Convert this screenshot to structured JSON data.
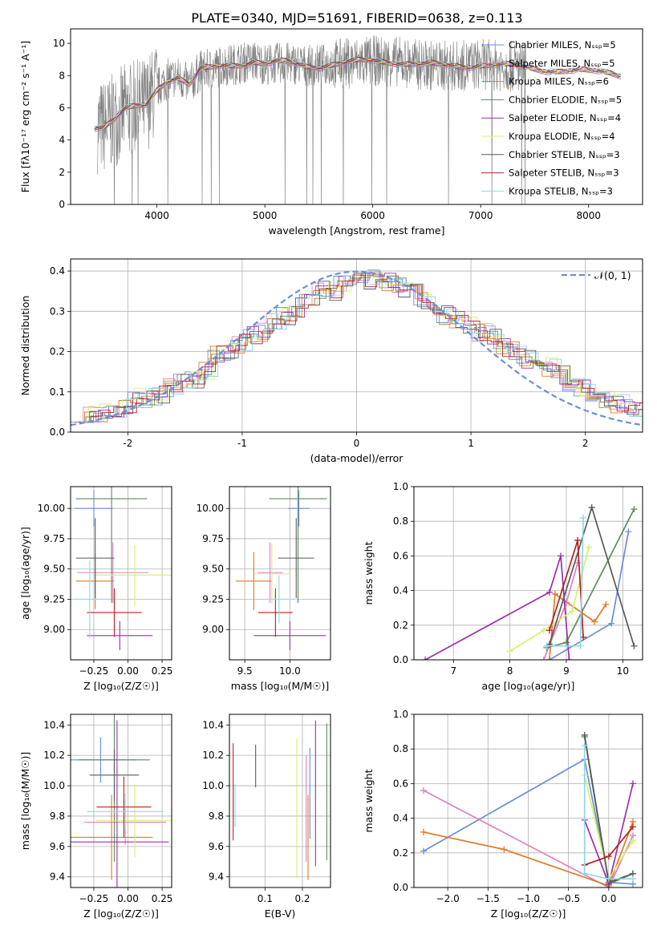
{
  "figure": {
    "title": "PLATE=0340, MJD=51691, FIBERID=0638, z=0.113"
  },
  "colors": [
    "#6a8fd8",
    "#e27fbf",
    "#e07b24",
    "#5e8a5e",
    "#9c2fae",
    "#d4f06a",
    "#5a5a5a",
    "#b82020",
    "#8fd6e8"
  ],
  "chart_data": [
    {
      "id": "spectrum",
      "type": "line",
      "title": "PLATE=0340, MJD=51691, FIBERID=0638, z=0.113",
      "xlabel": "wavelength [Angstrom, rest frame]",
      "ylabel": "Flux [fλ10⁻¹⁷ erg cm⁻² s⁻¹ A⁻¹]",
      "xlim": [
        3200,
        8500
      ],
      "ylim": [
        0,
        10.9
      ],
      "xticks": [
        4000,
        5000,
        6000,
        7000,
        8000
      ],
      "yticks": [
        0,
        2,
        4,
        6,
        8,
        10
      ],
      "grid": false,
      "legend_position": "top-right",
      "series": [
        {
          "name": "Chabrier MILES, N_SSP=5"
        },
        {
          "name": "Salpeter MILES, N_SSP=5"
        },
        {
          "name": "Kroupa MILES, N_SSP=6"
        },
        {
          "name": "Chabrier ELODIE, N_SSP=5"
        },
        {
          "name": "Salpeter ELODIE, N_SSP=4"
        },
        {
          "name": "Kroupa ELODIE, N_SSP=4"
        },
        {
          "name": "Chabrier STELIB, N_SSP=3"
        },
        {
          "name": "Salpeter STELIB, N_SSP=3"
        },
        {
          "name": "Kroupa STELIB, N_SSP=3"
        }
      ],
      "continuum_model": {
        "x": [
          3400,
          3500,
          3600,
          3700,
          3800,
          3900,
          4000,
          4100,
          4200,
          4300,
          4400,
          4500,
          4600,
          4700,
          4800,
          4900,
          5000,
          5200,
          5400,
          5600,
          5800,
          6000,
          6200,
          6400,
          6600,
          6800,
          7000,
          7200,
          7400,
          7600,
          7800,
          8000,
          8200,
          8300
        ],
        "y": [
          4.9,
          4.8,
          5.2,
          5.8,
          6.0,
          6.2,
          7.2,
          7.8,
          7.9,
          7.4,
          8.3,
          8.4,
          8.6,
          8.7,
          8.8,
          8.9,
          8.7,
          8.8,
          8.6,
          8.7,
          8.8,
          8.9,
          8.9,
          8.7,
          8.6,
          8.6,
          8.7,
          8.6,
          8.5,
          8.4,
          8.3,
          8.2,
          8.2,
          8.1
        ]
      }
    },
    {
      "id": "residual-histogram",
      "type": "step",
      "xlabel": "(data-model)/error",
      "ylabel": "Normed distribution",
      "xlim": [
        -2.5,
        2.5
      ],
      "ylim": [
        0,
        0.43
      ],
      "xticks": [
        -2,
        -1,
        0,
        1,
        2
      ],
      "yticks": [
        0.0,
        0.1,
        0.2,
        0.3,
        0.4
      ],
      "grid": true,
      "legend_position": "top-right",
      "reference": {
        "name": "𝒩(0, 1)",
        "mean": 0,
        "sigma": 1
      },
      "bins": [
        -2.5,
        -2.4,
        -2.3,
        -2.2,
        -2.1,
        -2.0,
        -1.9,
        -1.8,
        -1.7,
        -1.6,
        -1.5,
        -1.4,
        -1.3,
        -1.2,
        -1.1,
        -1.0,
        -0.9,
        -0.8,
        -0.7,
        -0.6,
        -0.5,
        -0.4,
        -0.3,
        -0.2,
        -0.1,
        0.0,
        0.1,
        0.2,
        0.3,
        0.4,
        0.5,
        0.6,
        0.7,
        0.8,
        0.9,
        1.0,
        1.1,
        1.2,
        1.3,
        1.4,
        1.5,
        1.6,
        1.7,
        1.8,
        1.9,
        2.0,
        2.1,
        2.2,
        2.3,
        2.4,
        2.5
      ],
      "density_approx": [
        0.05,
        0.045,
        0.05,
        0.055,
        0.06,
        0.085,
        0.085,
        0.09,
        0.11,
        0.12,
        0.13,
        0.155,
        0.19,
        0.2,
        0.22,
        0.24,
        0.25,
        0.27,
        0.29,
        0.31,
        0.32,
        0.35,
        0.35,
        0.37,
        0.38,
        0.38,
        0.385,
        0.37,
        0.36,
        0.35,
        0.33,
        0.31,
        0.29,
        0.28,
        0.27,
        0.25,
        0.24,
        0.21,
        0.2,
        0.18,
        0.17,
        0.16,
        0.14,
        0.11,
        0.105,
        0.09,
        0.08,
        0.07,
        0.06,
        0.055
      ]
    },
    {
      "id": "age-vs-Z",
      "type": "errorbar",
      "xlabel": "Z [log₁₀(Z/Z☉)]",
      "ylabel": "age  [log₁₀(age/yr)]",
      "xlim": [
        -0.42,
        0.32
      ],
      "ylim": [
        8.75,
        10.18
      ],
      "xticks": [
        -0.25,
        0.0,
        0.25
      ],
      "xticklabels": [
        "−0.25",
        "0.00",
        "0.25"
      ],
      "yticks": [
        9.0,
        9.25,
        9.5,
        9.75,
        10.0
      ],
      "yticklabels": [
        "9.00",
        "9.25",
        "9.50",
        "9.75",
        "10.00"
      ],
      "grid": true,
      "points": [
        {
          "c": 0,
          "x": -0.25,
          "xerr": 0.14,
          "y": 10.0,
          "yerr": 0.15
        },
        {
          "c": 1,
          "x": -0.11,
          "xerr": 0.26,
          "y": 9.47,
          "yerr": 0.25
        },
        {
          "c": 2,
          "x": -0.24,
          "xerr": 0.14,
          "y": 9.4,
          "yerr": 0.23
        },
        {
          "c": 3,
          "x": -0.12,
          "xerr": 0.26,
          "y": 10.08,
          "yerr": 0.86
        },
        {
          "c": 4,
          "x": -0.06,
          "xerr": 0.24,
          "y": 8.95,
          "yerr": 0.12
        },
        {
          "c": 5,
          "x": 0.05,
          "xerr": 0.3,
          "y": 9.45,
          "yerr": 0.25
        },
        {
          "c": 6,
          "x": -0.24,
          "xerr": 0.14,
          "y": 9.59,
          "yerr": 0.33
        },
        {
          "c": 7,
          "x": -0.1,
          "xerr": 0.2,
          "y": 9.14,
          "yerr": 0.2
        },
        {
          "c": 8,
          "x": -0.28,
          "xerr": 0.12,
          "y": 9.25,
          "yerr": 0.32
        }
      ]
    },
    {
      "id": "age-vs-mass",
      "type": "errorbar",
      "xlabel": "mass [log₁₀(M/M☉)]",
      "ylabel": "",
      "xlim": [
        9.33,
        10.45
      ],
      "ylim": [
        8.75,
        10.18
      ],
      "xticks": [
        9.5,
        10.0
      ],
      "xticklabels": [
        "9.5",
        "10.0"
      ],
      "yticks": [
        9.0,
        9.25,
        9.5,
        9.75,
        10.0
      ],
      "yticklabels": [
        "9.00",
        "9.25",
        "9.50",
        "9.75",
        "10.00"
      ],
      "grid": true,
      "points": [
        {
          "c": 0,
          "x": 10.1,
          "xerr": 0.12,
          "y": 10.0,
          "yerr": 0.15
        },
        {
          "c": 1,
          "x": 9.78,
          "xerr": 0.14,
          "y": 9.47,
          "yerr": 0.25
        },
        {
          "c": 2,
          "x": 9.6,
          "xerr": 0.2,
          "y": 9.4,
          "yerr": 0.24
        },
        {
          "c": 3,
          "x": 10.09,
          "xerr": 0.32,
          "y": 10.08,
          "yerr": 0.86
        },
        {
          "c": 4,
          "x": 10.0,
          "xerr": 0.4,
          "y": 8.95,
          "yerr": 0.12
        },
        {
          "c": 5,
          "x": 9.8,
          "xerr": 0.2,
          "y": 9.46,
          "yerr": 0.25
        },
        {
          "c": 6,
          "x": 10.07,
          "xerr": 0.2,
          "y": 9.59,
          "yerr": 0.33
        },
        {
          "c": 7,
          "x": 9.84,
          "xerr": 0.19,
          "y": 9.14,
          "yerr": 0.2
        },
        {
          "c": 8,
          "x": 9.88,
          "xerr": 0.18,
          "y": 9.25,
          "yerr": 0.2
        }
      ]
    },
    {
      "id": "mass-weight-vs-age",
      "type": "line",
      "xlabel": "age  [log₁₀(age/yr)]",
      "ylabel": "mass weight",
      "xlim": [
        6.3,
        10.35
      ],
      "ylim": [
        0,
        1.0
      ],
      "xticks": [
        7,
        8,
        9,
        10
      ],
      "yticks": [
        0.0,
        0.2,
        0.4,
        0.6,
        0.8,
        1.0
      ],
      "grid": true,
      "series": [
        {
          "c": 0,
          "x": [
            8.7,
            9.8,
            10.1
          ],
          "y": [
            0.0,
            0.21,
            0.74
          ]
        },
        {
          "c": 1,
          "x": [
            8.6,
            9.0,
            9.2
          ],
          "y": [
            0.0,
            0.33,
            0.56
          ]
        },
        {
          "c": 2,
          "x": [
            8.7,
            8.8,
            9.5,
            9.7
          ],
          "y": [
            0.0,
            0.38,
            0.22,
            0.32
          ]
        },
        {
          "c": 3,
          "x": [
            8.65,
            9.0,
            10.2
          ],
          "y": [
            0.07,
            0.1,
            0.87
          ]
        },
        {
          "c": 4,
          "x": [
            6.5,
            8.7,
            8.9,
            9.05
          ],
          "y": [
            0.0,
            0.39,
            0.6,
            0.0
          ]
        },
        {
          "c": 5,
          "x": [
            8.0,
            8.6,
            9.1,
            9.4
          ],
          "y": [
            0.05,
            0.17,
            0.28,
            0.65
          ]
        },
        {
          "c": 6,
          "x": [
            8.7,
            9.45,
            10.2
          ],
          "y": [
            0.09,
            0.88,
            0.08
          ]
        },
        {
          "c": 7,
          "x": [
            8.7,
            9.2,
            9.3
          ],
          "y": [
            0.17,
            0.69,
            0.13
          ]
        },
        {
          "c": 8,
          "x": [
            8.65,
            9.25,
            9.3
          ],
          "y": [
            0.08,
            0.08,
            0.82
          ]
        }
      ]
    },
    {
      "id": "mass-vs-Z",
      "type": "errorbar",
      "xlabel": "Z [log₁₀(Z/Z☉)]",
      "ylabel": "mass [log₁₀(M/M☉)]",
      "xlim": [
        -0.42,
        0.32
      ],
      "ylim": [
        9.33,
        10.47
      ],
      "xticks": [
        -0.25,
        0.0,
        0.25
      ],
      "xticklabels": [
        "−0.25",
        "0.00",
        "0.25"
      ],
      "yticks": [
        9.4,
        9.6,
        9.8,
        10.0,
        10.2,
        10.4
      ],
      "yticklabels": [
        "9.4",
        "9.6",
        "9.8",
        "10.0",
        "10.2",
        "10.4"
      ],
      "grid": true,
      "points": [
        {
          "c": 0,
          "x": -0.2,
          "xerr": 0.26,
          "y": 10.17,
          "yerr": 0.15
        },
        {
          "c": 1,
          "x": -0.02,
          "xerr": 0.3,
          "y": 9.76,
          "yerr": 0.15
        },
        {
          "c": 2,
          "x": -0.12,
          "xerr": 0.3,
          "y": 9.66,
          "yerr": 0.28
        },
        {
          "c": 3,
          "x": -0.1,
          "xerr": 0.26,
          "y": 10.17,
          "yerr": 0.67
        },
        {
          "c": 4,
          "x": -0.08,
          "xerr": 0.38,
          "y": 9.63,
          "yerr": 0.8
        },
        {
          "c": 5,
          "x": 0.05,
          "xerr": 0.28,
          "y": 9.77,
          "yerr": 0.24
        },
        {
          "c": 6,
          "x": -0.1,
          "xerr": 0.18,
          "y": 10.07,
          "yerr": 0.17
        },
        {
          "c": 7,
          "x": -0.03,
          "xerr": 0.2,
          "y": 9.86,
          "yerr": 0.2
        },
        {
          "c": 8,
          "x": -0.02,
          "xerr": 0.28,
          "y": 9.83,
          "yerr": 0.12
        }
      ]
    },
    {
      "id": "mass-vs-EBV",
      "type": "errorbar",
      "xlabel": "E(B-V)",
      "ylabel": "",
      "xlim": [
        0.005,
        0.275
      ],
      "ylim": [
        9.33,
        10.47
      ],
      "xticks": [
        0.1,
        0.2
      ],
      "xticklabels": [
        "0.1",
        "0.2"
      ],
      "yticks": [
        9.4,
        9.6,
        9.8,
        10.0,
        10.2,
        10.4
      ],
      "yticklabels": [
        "9.4",
        "9.6",
        "9.8",
        "10.0",
        "10.2",
        "10.4"
      ],
      "grid": true,
      "points": [
        {
          "c": 0,
          "x": 0.22,
          "xerr": 0,
          "y": 9.95,
          "yerr": 0.3
        },
        {
          "c": 1,
          "x": 0.21,
          "xerr": 0,
          "y": 9.85,
          "yerr": 0.35
        },
        {
          "c": 2,
          "x": 0.215,
          "xerr": 0,
          "y": 9.66,
          "yerr": 0.28
        },
        {
          "c": 3,
          "x": 0.265,
          "xerr": 0,
          "y": 9.96,
          "yerr": 0.45
        },
        {
          "c": 4,
          "x": 0.235,
          "xerr": 0,
          "y": 9.95,
          "yerr": 0.48
        },
        {
          "c": 5,
          "x": 0.185,
          "xerr": 0,
          "y": 9.85,
          "yerr": 0.46
        },
        {
          "c": 6,
          "x": 0.075,
          "xerr": 0,
          "y": 10.13,
          "yerr": 0.14
        },
        {
          "c": 7,
          "x": 0.015,
          "xerr": 0,
          "y": 9.96,
          "yerr": 0.32
        },
        {
          "c": 8,
          "x": 0.02,
          "xerr": 0,
          "y": 9.87,
          "yerr": 0.14
        }
      ]
    },
    {
      "id": "mass-weight-vs-Z",
      "type": "line",
      "xlabel": "Z [log₁₀(Z/Z☉)]",
      "ylabel": "mass weight",
      "xlim": [
        -2.42,
        0.42
      ],
      "ylim": [
        0,
        1.0
      ],
      "xticks": [
        -2.0,
        -1.5,
        -1.0,
        -0.5,
        0.0
      ],
      "xticklabels": [
        "−2.0",
        "−1.5",
        "−1.0",
        "−0.5",
        "0.0"
      ],
      "yticks": [
        0.0,
        0.2,
        0.4,
        0.6,
        0.8,
        1.0
      ],
      "grid": true,
      "series": [
        {
          "c": 0,
          "x": [
            -2.3,
            -0.3,
            0.0,
            0.3
          ],
          "y": [
            0.21,
            0.74,
            0.03,
            0.02
          ]
        },
        {
          "c": 1,
          "x": [
            -2.3,
            0.0,
            0.3
          ],
          "y": [
            0.56,
            0.0,
            0.3
          ]
        },
        {
          "c": 2,
          "x": [
            -2.3,
            -1.3,
            0.0,
            0.3
          ],
          "y": [
            0.32,
            0.22,
            0.01,
            0.38
          ]
        },
        {
          "c": 3,
          "x": [
            -0.3,
            0.0,
            0.3
          ],
          "y": [
            0.87,
            0.02,
            0.08
          ]
        },
        {
          "c": 4,
          "x": [
            -0.3,
            0.0,
            0.3
          ],
          "y": [
            0.39,
            0.02,
            0.6
          ]
        },
        {
          "c": 5,
          "x": [
            -0.3,
            0.0,
            0.3
          ],
          "y": [
            0.65,
            0.05,
            0.27
          ]
        },
        {
          "c": 6,
          "x": [
            -0.3,
            0.0,
            0.3
          ],
          "y": [
            0.88,
            0.03,
            0.08
          ]
        },
        {
          "c": 7,
          "x": [
            -0.3,
            0.0,
            0.3
          ],
          "y": [
            0.13,
            0.18,
            0.35
          ]
        },
        {
          "c": 8,
          "x": [
            -0.3,
            -0.3,
            0.0,
            0.3
          ],
          "y": [
            0.82,
            0.08,
            0.05,
            0.05
          ]
        }
      ]
    }
  ]
}
